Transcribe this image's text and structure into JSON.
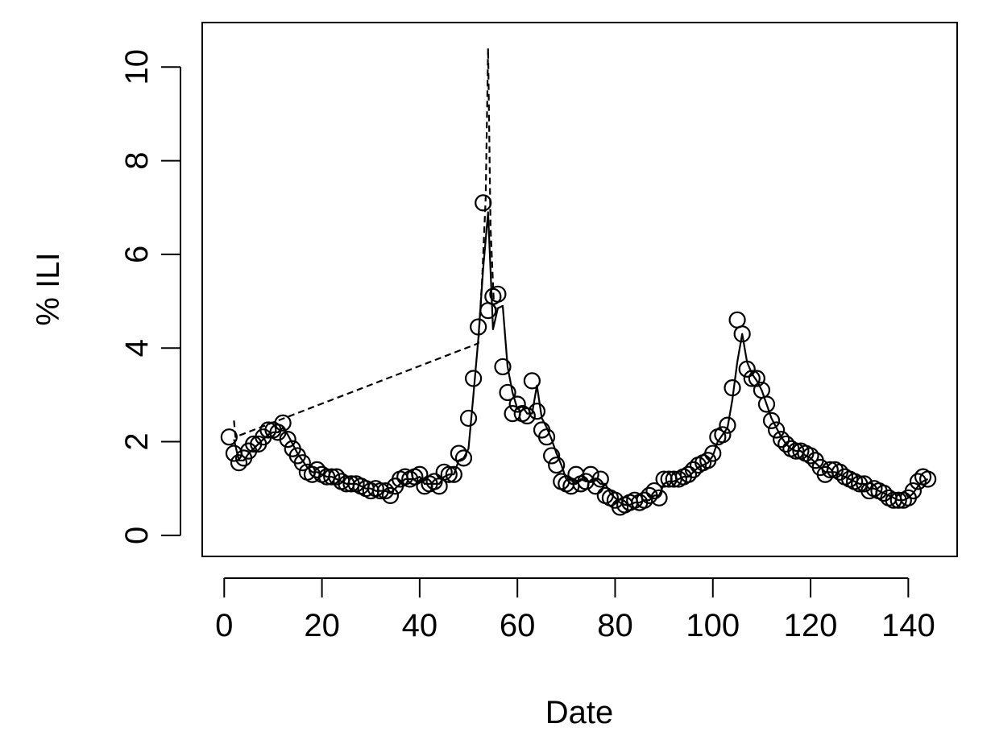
{
  "chart_data": {
    "type": "scatter",
    "xlabel": "Date",
    "ylabel": "% ILI",
    "xlim": [
      -4.5,
      150
    ],
    "ylim": [
      -0.45,
      10.95
    ],
    "xticks": [
      0,
      20,
      40,
      60,
      80,
      100,
      120,
      140
    ],
    "yticks": [
      0,
      2,
      4,
      6,
      8,
      10
    ],
    "grid": false,
    "series": [
      {
        "style": "points",
        "x": [
          1,
          2,
          3,
          4,
          5,
          6,
          7,
          8,
          9,
          10,
          11,
          12,
          13,
          14,
          15,
          16,
          17,
          18,
          19,
          20,
          21,
          22,
          23,
          24,
          25,
          26,
          27,
          28,
          29,
          30,
          31,
          32,
          33,
          34,
          35,
          36,
          37,
          38,
          39,
          40,
          41,
          42,
          43,
          44,
          45,
          46,
          47,
          48,
          49,
          50,
          51,
          52,
          53,
          54,
          55,
          56,
          57,
          58,
          59,
          60,
          61,
          62,
          63,
          64,
          65,
          66,
          67,
          68,
          69,
          70,
          71,
          72,
          73,
          74,
          75,
          76,
          77,
          78,
          79,
          80,
          81,
          82,
          83,
          84,
          85,
          86,
          87,
          88,
          89,
          90,
          91,
          92,
          93,
          94,
          95,
          96,
          97,
          98,
          99,
          100,
          101,
          102,
          103,
          104,
          105,
          106,
          107,
          108,
          109,
          110,
          111,
          112,
          113,
          114,
          115,
          116,
          117,
          118,
          119,
          120,
          121,
          122,
          123,
          124,
          125,
          126,
          127,
          128,
          129,
          130,
          131,
          132,
          133,
          134,
          135,
          136,
          137,
          138,
          139,
          140,
          141,
          142,
          143,
          144
        ],
        "y": [
          2.1,
          1.75,
          1.55,
          1.65,
          1.8,
          1.95,
          1.95,
          2.1,
          2.25,
          2.25,
          2.2,
          2.4,
          2.05,
          1.85,
          1.7,
          1.55,
          1.35,
          1.3,
          1.4,
          1.3,
          1.25,
          1.25,
          1.25,
          1.15,
          1.1,
          1.1,
          1.1,
          1.05,
          1.0,
          0.95,
          1.0,
          0.95,
          0.95,
          0.85,
          1.05,
          1.2,
          1.25,
          1.2,
          1.25,
          1.3,
          1.05,
          1.1,
          1.15,
          1.05,
          1.35,
          1.3,
          1.3,
          1.75,
          1.65,
          2.5,
          3.35,
          4.45,
          7.1,
          4.8,
          5.1,
          5.15,
          3.6,
          3.05,
          2.6,
          2.8,
          2.6,
          2.55,
          3.3,
          2.65,
          2.25,
          2.1,
          1.7,
          1.5,
          1.15,
          1.1,
          1.05,
          1.3,
          1.1,
          1.15,
          1.3,
          1.05,
          1.2,
          0.85,
          0.8,
          0.75,
          0.6,
          0.65,
          0.7,
          0.75,
          0.7,
          0.75,
          0.85,
          0.95,
          0.8,
          1.2,
          1.2,
          1.2,
          1.2,
          1.25,
          1.3,
          1.4,
          1.5,
          1.55,
          1.6,
          1.75,
          2.1,
          2.15,
          2.35,
          3.15,
          4.6,
          4.3,
          3.55,
          3.35,
          3.35,
          3.1,
          2.8,
          2.45,
          2.25,
          2.05,
          1.95,
          1.85,
          1.8,
          1.8,
          1.75,
          1.7,
          1.6,
          1.45,
          1.3,
          1.4,
          1.4,
          1.35,
          1.25,
          1.2,
          1.15,
          1.1,
          1.1,
          0.95,
          1.0,
          0.95,
          0.9,
          0.8,
          0.75,
          0.75,
          0.75,
          0.8,
          0.95,
          1.15,
          1.25,
          1.2
        ]
      },
      {
        "style": "solid-line",
        "x": [
          2,
          3,
          4,
          5,
          6,
          7,
          8,
          9,
          10,
          11,
          12,
          13,
          14,
          15,
          16,
          17,
          18,
          19,
          20,
          21,
          22,
          23,
          24,
          25,
          26,
          27,
          28,
          29,
          30,
          31,
          32,
          33,
          34,
          35,
          36,
          37,
          38,
          39,
          40,
          41,
          42,
          43,
          44,
          45,
          46,
          47,
          48,
          49,
          50,
          51,
          52,
          53,
          54,
          55,
          56,
          57,
          58,
          59,
          60,
          61,
          62,
          63,
          64,
          65,
          66,
          67,
          68,
          69,
          70,
          71,
          72,
          73,
          74,
          75,
          76,
          77,
          78,
          79,
          80,
          81,
          82,
          83,
          84,
          85,
          86,
          87,
          88,
          89,
          90,
          91,
          92,
          93,
          94,
          95,
          96,
          97,
          98,
          99,
          100,
          101,
          102,
          103,
          104,
          105,
          106,
          107,
          108,
          109,
          110,
          111,
          112,
          113,
          114,
          115,
          116,
          117,
          118,
          119,
          120,
          121,
          122,
          123,
          124,
          125,
          126,
          127,
          128,
          129,
          130,
          131,
          132,
          133,
          134,
          135,
          136,
          137,
          138,
          139,
          140,
          141,
          142,
          143,
          144
        ],
        "y": [
          2.05,
          1.6,
          1.6,
          1.75,
          1.85,
          1.95,
          2.05,
          2.15,
          2.2,
          2.2,
          2.3,
          2.15,
          1.95,
          1.75,
          1.6,
          1.45,
          1.35,
          1.35,
          1.3,
          1.25,
          1.25,
          1.2,
          1.15,
          1.1,
          1.1,
          1.1,
          1.05,
          1.0,
          1.0,
          0.95,
          0.95,
          0.95,
          0.9,
          1.0,
          1.1,
          1.2,
          1.2,
          1.2,
          1.25,
          1.1,
          1.1,
          1.1,
          1.1,
          1.25,
          1.3,
          1.3,
          1.6,
          1.65,
          1.85,
          3.0,
          4.2,
          5.7,
          6.9,
          4.4,
          4.85,
          4.9,
          3.6,
          3.05,
          2.7,
          2.75,
          2.6,
          2.6,
          3.2,
          2.5,
          2.3,
          2.05,
          1.75,
          1.5,
          1.2,
          1.1,
          1.1,
          1.2,
          1.15,
          1.15,
          1.2,
          1.1,
          1.1,
          0.9,
          0.8,
          0.7,
          0.65,
          0.65,
          0.7,
          0.7,
          0.75,
          0.75,
          0.85,
          0.85,
          1.1,
          1.15,
          1.15,
          1.2,
          1.25,
          1.25,
          1.35,
          1.45,
          1.5,
          1.55,
          1.7,
          2.0,
          2.15,
          2.3,
          2.9,
          3.7,
          4.3,
          3.7,
          3.45,
          3.3,
          3.1,
          2.8,
          2.5,
          2.3,
          2.1,
          1.95,
          1.85,
          1.8,
          1.8,
          1.7,
          1.65,
          1.55,
          1.45,
          1.35,
          1.35,
          1.35,
          1.3,
          1.25,
          1.2,
          1.15,
          1.1,
          1.1,
          1.0,
          1.0,
          0.95,
          0.9,
          0.85,
          0.8,
          0.75,
          0.75,
          0.8,
          0.9,
          1.05,
          1.15,
          1.2
        ]
      },
      {
        "style": "dashed-line",
        "x": [
          2,
          2.3,
          52,
          52.8,
          53.5,
          54,
          54.5,
          55.2,
          56
        ],
        "y": [
          2.45,
          2.1,
          4.1,
          5.5,
          7.2,
          10.4,
          6.6,
          4.9,
          4.8
        ]
      }
    ]
  }
}
